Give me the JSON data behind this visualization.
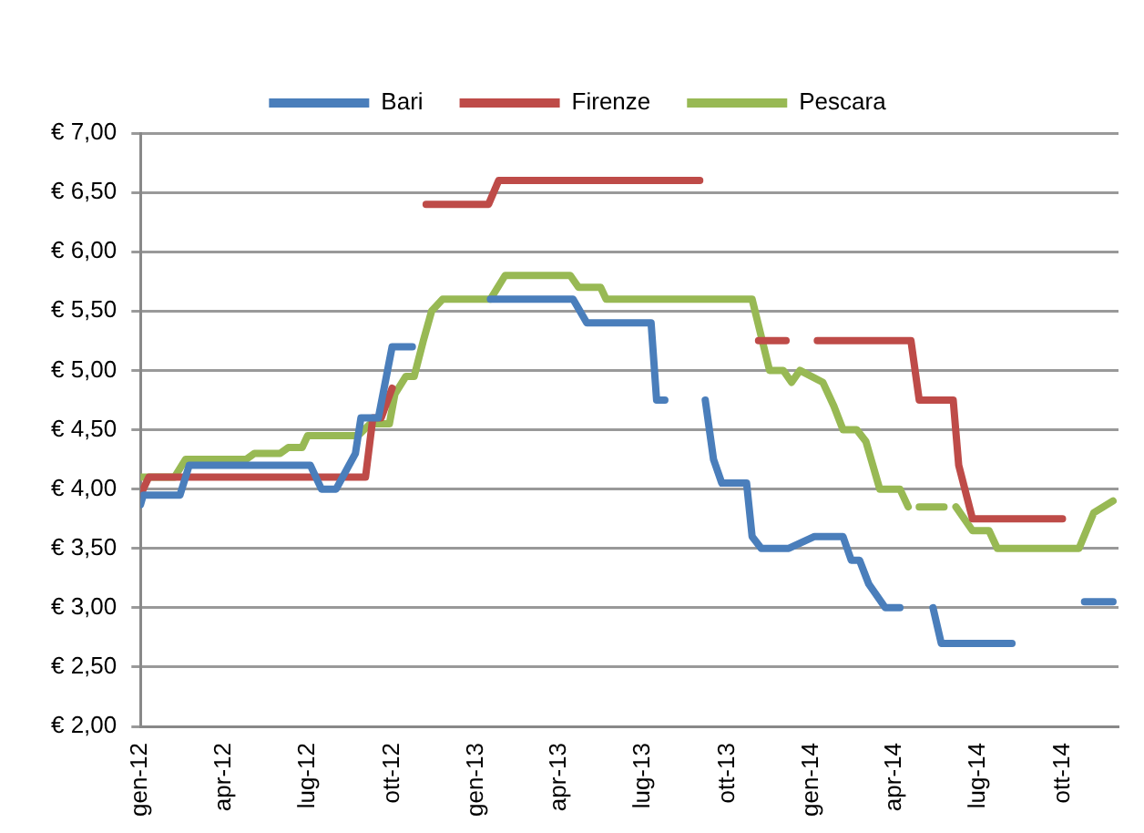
{
  "chart_data": {
    "type": "line",
    "legend": "top",
    "grid": "y",
    "marker": "none",
    "line_style": "solid",
    "xlim": [
      "2012-01-01",
      "2014-12-01"
    ],
    "xticks": [
      {
        "value": "2012-01-01",
        "label": "gen-12"
      },
      {
        "value": "2012-04-01",
        "label": "apr-12"
      },
      {
        "value": "2012-07-01",
        "label": "lug-12"
      },
      {
        "value": "2012-10-01",
        "label": "ott-12"
      },
      {
        "value": "2013-01-01",
        "label": "gen-13"
      },
      {
        "value": "2013-04-01",
        "label": "apr-13"
      },
      {
        "value": "2013-07-01",
        "label": "lug-13"
      },
      {
        "value": "2013-10-01",
        "label": "ott-13"
      },
      {
        "value": "2014-01-01",
        "label": "gen-14"
      },
      {
        "value": "2014-04-01",
        "label": "apr-14"
      },
      {
        "value": "2014-07-01",
        "label": "lug-14"
      },
      {
        "value": "2014-10-01",
        "label": "ott-14"
      }
    ],
    "ylim": [
      2,
      7
    ],
    "yticks": [
      {
        "value": 2,
        "label": "€ 2,00"
      },
      {
        "value": 2.5,
        "label": "€ 2,50"
      },
      {
        "value": 3,
        "label": "€ 3,00"
      },
      {
        "value": 3.5,
        "label": "€ 3,50"
      },
      {
        "value": 4,
        "label": "€ 4,00"
      },
      {
        "value": 4.5,
        "label": "€ 4,50"
      },
      {
        "value": 5,
        "label": "€ 5,00"
      },
      {
        "value": 5.5,
        "label": "€ 5,50"
      },
      {
        "value": 6,
        "label": "€ 6,00"
      },
      {
        "value": 6.5,
        "label": "€ 6,50"
      },
      {
        "value": 7,
        "label": "€ 7,00"
      }
    ],
    "series": [
      {
        "name": "Bari",
        "color": "#4a7ebb",
        "x": [
          "2012-01-01",
          "2012-01-04",
          "2012-02-13",
          "2012-02-23",
          "2012-07-04",
          "2012-07-16",
          "2012-08-01",
          "2012-08-22",
          "2012-08-28",
          "2012-09-16",
          "2012-10-01",
          "2012-10-23",
          "2012-11-15",
          "2013-01-16",
          "2013-04-16",
          "2013-05-01",
          "2013-07-10",
          "2013-07-16",
          "2013-07-25",
          "2013-08-15",
          "2013-09-07",
          "2013-09-16",
          "2013-09-25",
          "2013-10-22",
          "2013-10-28",
          "2013-11-07",
          "2013-12-07",
          "2014-01-04",
          "2014-02-04",
          "2014-02-13",
          "2014-02-22",
          "2014-03-04",
          "2014-03-22",
          "2014-04-07",
          "2014-05-01",
          "2014-05-13",
          "2014-05-22",
          "2014-08-07",
          "2014-09-15",
          "2014-10-25",
          "2014-11-25"
        ],
        "values": [
          3.87,
          3.95,
          3.95,
          4.2,
          4.2,
          4.0,
          4.0,
          4.3,
          4.6,
          4.6,
          5.2,
          5.2,
          null,
          5.6,
          5.6,
          5.4,
          5.4,
          4.75,
          4.75,
          null,
          4.75,
          4.25,
          4.05,
          4.05,
          3.6,
          3.5,
          3.5,
          3.6,
          3.6,
          3.4,
          3.4,
          3.2,
          3.0,
          3.0,
          null,
          3.0,
          2.7,
          2.7,
          null,
          3.05,
          3.05
        ]
      },
      {
        "name": "Firenze",
        "color": "#be4b48",
        "x": [
          "2012-01-01",
          "2012-01-10",
          "2012-09-02",
          "2012-09-10",
          "2012-09-19",
          "2012-10-01",
          "2012-10-20",
          "2012-11-07",
          "2013-01-14",
          "2013-01-25",
          "2013-09-01",
          "2013-10-15",
          "2013-11-04",
          "2013-12-04",
          "2013-12-20",
          "2014-01-07",
          "2014-04-19",
          "2014-04-28",
          "2014-06-04",
          "2014-06-10",
          "2014-06-25",
          "2014-10-01"
        ],
        "values": [
          3.95,
          4.1,
          4.1,
          4.6,
          4.6,
          4.85,
          null,
          6.4,
          6.4,
          6.6,
          6.6,
          null,
          5.25,
          5.25,
          null,
          5.25,
          5.25,
          4.75,
          4.75,
          4.2,
          3.75,
          3.75
        ]
      },
      {
        "name": "Pescara",
        "color": "#98b954",
        "x": [
          "2012-01-01",
          "2012-02-07",
          "2012-02-19",
          "2012-04-25",
          "2012-05-04",
          "2012-06-01",
          "2012-06-10",
          "2012-06-25",
          "2012-07-01",
          "2012-08-25",
          "2012-09-07",
          "2012-09-28",
          "2012-10-04",
          "2012-10-16",
          "2012-10-25",
          "2012-11-04",
          "2012-11-13",
          "2012-11-25",
          "2013-01-16",
          "2013-02-01",
          "2013-04-13",
          "2013-04-22",
          "2013-05-16",
          "2013-05-22",
          "2013-10-28",
          "2013-11-16",
          "2013-12-01",
          "2013-12-10",
          "2013-12-19",
          "2014-01-13",
          "2014-01-25",
          "2014-02-04",
          "2014-02-19",
          "2014-03-01",
          "2014-03-16",
          "2014-04-07",
          "2014-04-16",
          "2014-04-22",
          "2014-04-28",
          "2014-05-25",
          "2014-06-01",
          "2014-06-07",
          "2014-06-25",
          "2014-07-13",
          "2014-07-22",
          "2014-10-19",
          "2014-11-04",
          "2014-11-25"
        ],
        "values": [
          4.1,
          4.1,
          4.25,
          4.25,
          4.3,
          4.3,
          4.35,
          4.35,
          4.45,
          4.45,
          4.55,
          4.55,
          4.8,
          4.95,
          4.95,
          5.25,
          5.5,
          5.6,
          5.6,
          5.8,
          5.8,
          5.7,
          5.7,
          5.6,
          5.6,
          5.0,
          5.0,
          4.9,
          5.0,
          4.9,
          4.7,
          4.5,
          4.5,
          4.4,
          4.0,
          4.0,
          3.85,
          null,
          3.85,
          3.85,
          null,
          3.85,
          3.65,
          3.65,
          3.5,
          3.5,
          3.8,
          3.9
        ]
      }
    ]
  }
}
